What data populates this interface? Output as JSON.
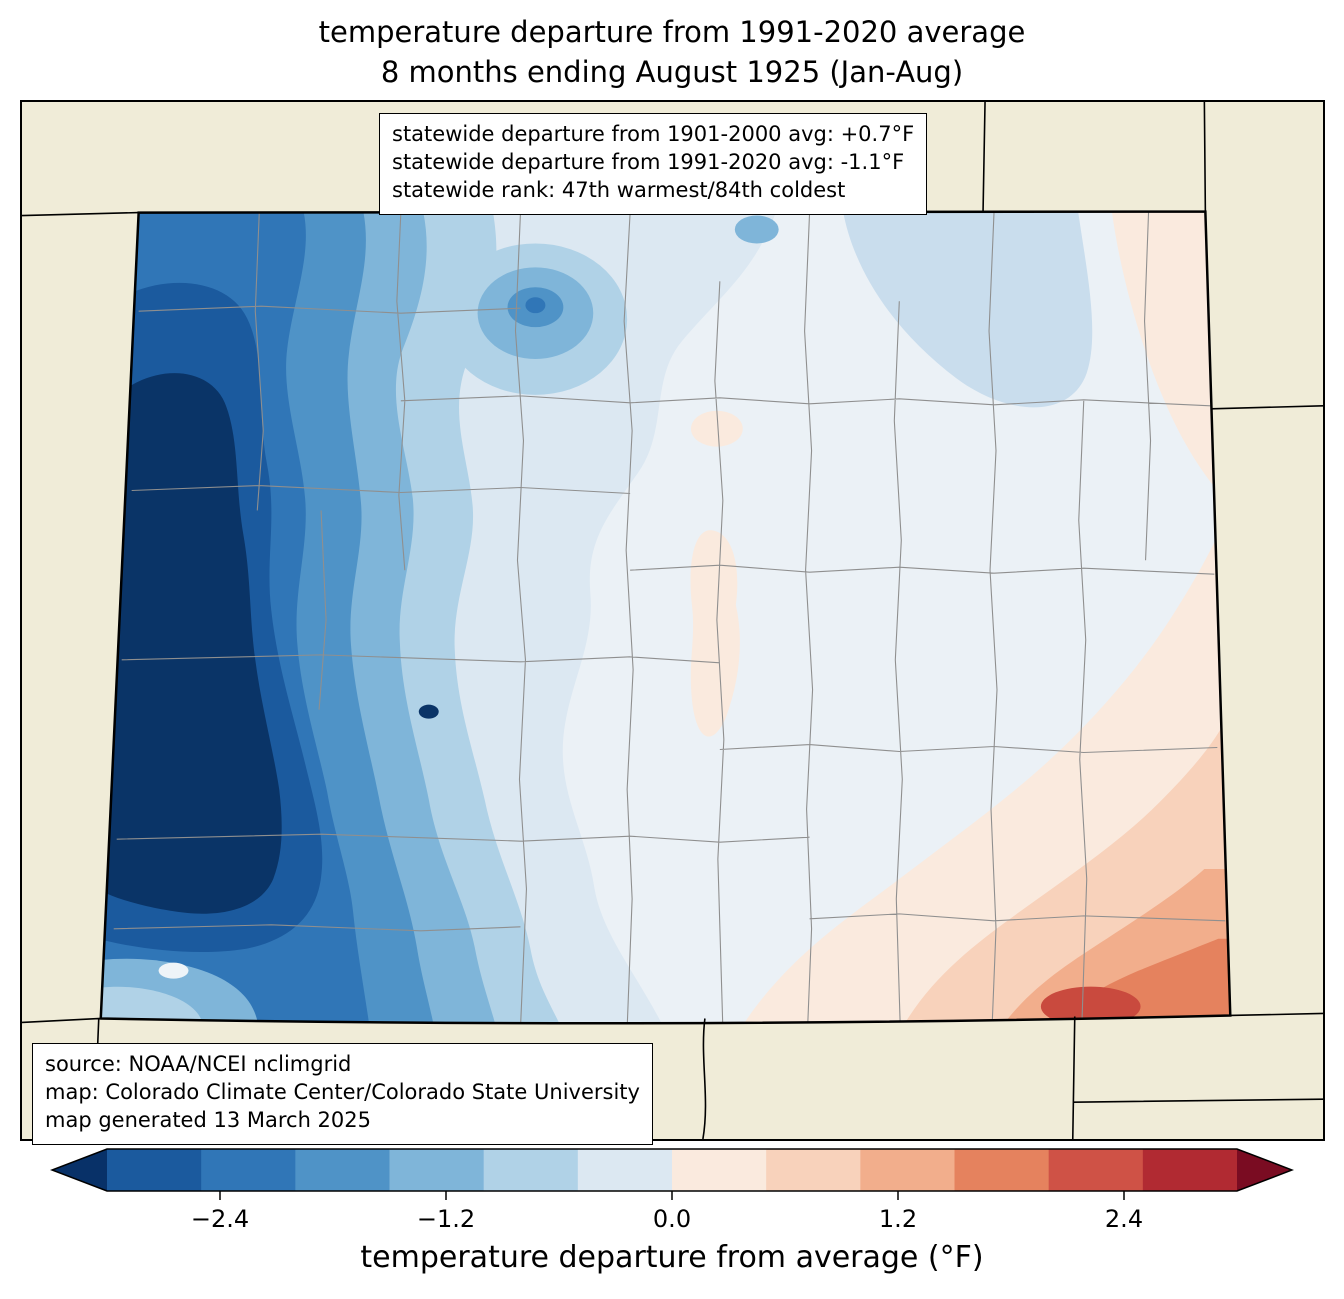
{
  "title": {
    "line1": "temperature departure from 1991-2020 average",
    "line2": "8 months ending August 1925 (Jan-Aug)"
  },
  "stats_box": {
    "line1": "statewide departure from 1901-2000 avg: +0.7°F",
    "line2": "statewide departure from 1991-2020 avg: -1.1°F",
    "line3": "statewide rank: 47th warmest/84th coldest"
  },
  "source_box": {
    "line1": "source: NOAA/NCEI nclimgrid",
    "line2": "map: Colorado Climate Center/Colorado State University",
    "line3": "map generated 13 March 2025"
  },
  "colorbar": {
    "label": "temperature departure from average (°F)",
    "tick_labels": [
      "−2.4",
      "−1.2",
      "0.0",
      "1.2",
      "2.4"
    ],
    "tick_values": [
      -2.4,
      -1.2,
      0.0,
      1.2,
      2.4
    ],
    "range_min": -3.0,
    "range_max": 3.0,
    "colors": [
      "#1b5a9e",
      "#3076b7",
      "#4f93c7",
      "#7fb5d9",
      "#b0d2e7",
      "#dce8f2",
      "#faeade",
      "#f8d2bb",
      "#f2ae8c",
      "#e5825e",
      "#cf5246",
      "#b12a32"
    ],
    "under_color": "#083168",
    "over_color": "#7a0c22"
  },
  "map": {
    "region_label": "Colorado",
    "outside_color": "#f0ecd8",
    "base_color": "#ebf1f6",
    "border_color": "#000000",
    "county_line_color": "#8f8f8f",
    "band_colors": {
      "blue1": "#dce8f2",
      "blue2": "#b0d2e7",
      "blue3": "#7fb5d9",
      "blue4": "#4f93c7",
      "blue5": "#3076b7",
      "blue6": "#1b5a9e",
      "blue7": "#0a3467",
      "ltpatch": "#c9dded",
      "pink1": "#faeade",
      "pink2": "#f8d2bb",
      "pink3": "#f2ae8c",
      "pink4": "#e5825e",
      "red1": "#c94a3e",
      "white_dot": "#eef4f8"
    }
  }
}
